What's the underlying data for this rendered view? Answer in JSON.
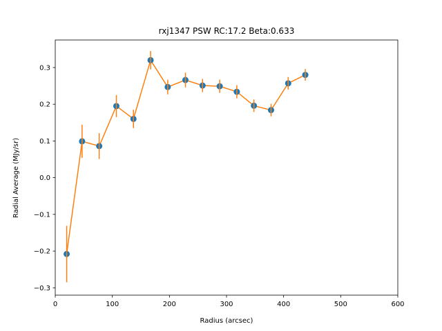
{
  "chart_data": {
    "type": "scatter",
    "title": "rxj1347  PSW  RC:17.2  Beta:0.633",
    "xlabel": "Radius (arcsec)",
    "ylabel": "Radial Average (MJy/sr)",
    "xlim": [
      0,
      600
    ],
    "ylim": [
      -0.32,
      0.375
    ],
    "xticks": [
      0,
      100,
      200,
      300,
      400,
      500,
      600
    ],
    "xtick_labels": [
      "0",
      "100",
      "200",
      "300",
      "400",
      "500",
      "600"
    ],
    "yticks": [
      -0.3,
      -0.2,
      -0.1,
      0.0,
      0.1,
      0.2,
      0.3
    ],
    "ytick_labels": [
      "−0.3",
      "−0.2",
      "−0.1",
      "0.0",
      "0.1",
      "0.2",
      "0.3"
    ],
    "grid": false,
    "series": [
      {
        "marker": "circle",
        "line": true,
        "points_color": "#1f77b4",
        "line_color": "#ff7f0e",
        "x": [
          20,
          47,
          77,
          107,
          137,
          167,
          197,
          228,
          258,
          288,
          318,
          348,
          378,
          408,
          438
        ],
        "y": [
          -0.208,
          0.099,
          0.086,
          0.195,
          0.16,
          0.32,
          0.247,
          0.266,
          0.251,
          0.249,
          0.234,
          0.196,
          0.184,
          0.257,
          0.28
        ],
        "yerr": [
          0.077,
          0.045,
          0.035,
          0.03,
          0.025,
          0.025,
          0.02,
          0.02,
          0.018,
          0.018,
          0.018,
          0.017,
          0.017,
          0.017,
          0.016
        ]
      }
    ]
  }
}
